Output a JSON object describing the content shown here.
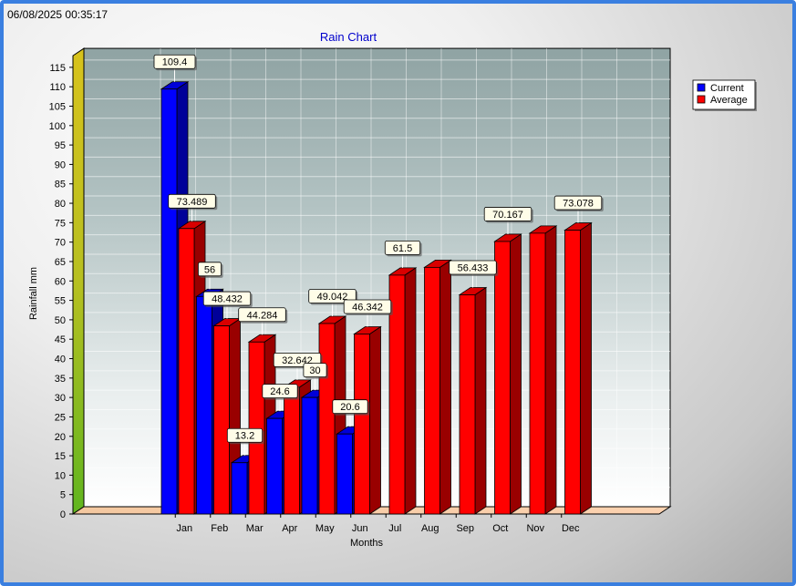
{
  "timestamp": "06/08/2025 00:35:17",
  "chart_data": {
    "type": "bar",
    "title": "Rain Chart",
    "xlabel": "Months",
    "ylabel": "Rainfall mm",
    "ylim": [
      0,
      115
    ],
    "ytick_step": 5,
    "grid": true,
    "legend_position": "top-right",
    "categories": [
      "Jan",
      "Feb",
      "Mar",
      "Apr",
      "May",
      "Jun",
      "Jul",
      "Aug",
      "Sep",
      "Oct",
      "Nov",
      "Dec"
    ],
    "series": [
      {
        "name": "Current",
        "color": "#0000ff",
        "values": [
          109.4,
          56,
          13.2,
          24.6,
          30,
          20.6,
          null,
          null,
          null,
          null,
          null,
          null
        ],
        "labels": [
          "109.4",
          "56",
          "13.2",
          "24.6",
          "30",
          "20.6",
          null,
          null,
          null,
          null,
          null,
          null
        ]
      },
      {
        "name": "Average",
        "color": "#ff0000",
        "values": [
          73.489,
          48.432,
          44.284,
          32.642,
          49.042,
          46.342,
          61.5,
          63.5,
          56.433,
          70.167,
          72.3,
          73.078
        ],
        "labels": [
          "73.489",
          "48.432",
          "44.284",
          "32.642",
          "49.042",
          "46.342",
          "61.5",
          null,
          "56.433",
          "70.167",
          null,
          "73.078"
        ]
      }
    ]
  }
}
